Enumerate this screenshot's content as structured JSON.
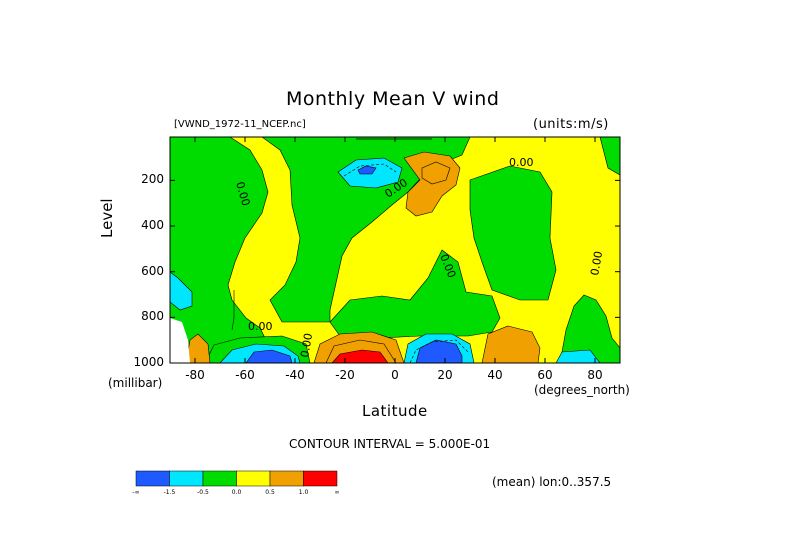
{
  "chart_data": {
    "type": "heatmap",
    "title": "Monthly Mean V wind",
    "dataset_label": "[VWND_1972-11_NCEP.nc]",
    "units_label": "(units:m/s)",
    "xlabel": "Latitude",
    "x_units": "(degrees_north)",
    "ylabel": "Level",
    "y_units": "(millibar)",
    "x_ticks": [
      "-80",
      "-60",
      "-40",
      "-20",
      "0",
      "20",
      "40",
      "60",
      "80"
    ],
    "y_ticks": [
      "200",
      "400",
      "600",
      "800",
      "1000"
    ],
    "xlim": [
      -90,
      90
    ],
    "ylim": [
      1000,
      10
    ],
    "contour_interval_text": "CONTOUR INTERVAL = 5.000E-01",
    "footer_text": "(mean) lon:0..357.5",
    "contour_labels": [
      "0.00",
      "0.00",
      "0.00",
      "0.00",
      "0.00",
      "0.00",
      "0.00"
    ],
    "colorbar": {
      "labels": [
        "-∞",
        "-1.5",
        "-0.5",
        "0.0",
        "0.5",
        "1.0",
        "∞"
      ],
      "colors": [
        "#1e5aff",
        "#00e6ff",
        "#00dc00",
        "#ffff00",
        "#f0a000",
        "#ff0000"
      ]
    }
  }
}
